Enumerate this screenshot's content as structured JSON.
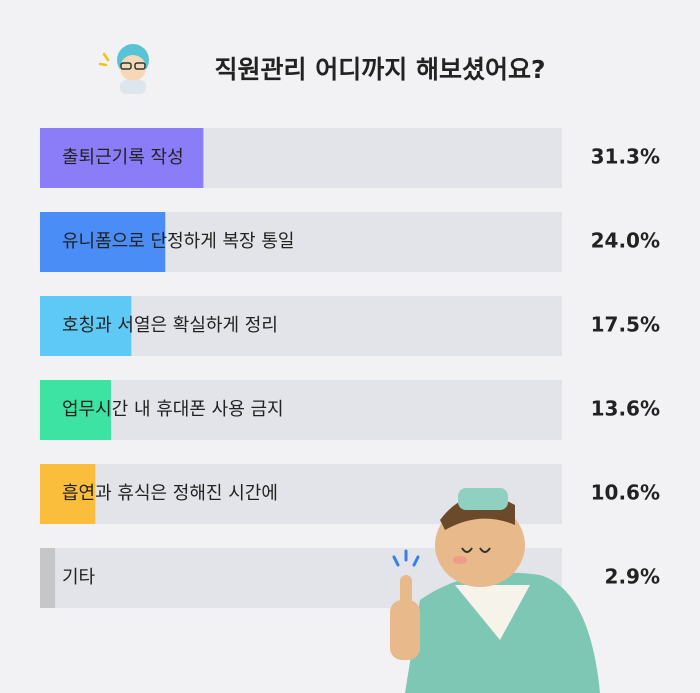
{
  "chart_data": {
    "type": "bar",
    "orientation": "horizontal",
    "title": "직원관리 어디까지 해보셨어요?",
    "categories": [
      "출퇴근기록 작성",
      "유니폼으로 단정하게 복장 통일",
      "호칭과 서열은 확실하게 정리",
      "업무시간 내 휴대폰 사용 금지",
      "흡연과 휴식은 정해진 시간에",
      "기타"
    ],
    "values": [
      31.3,
      24.0,
      17.5,
      13.6,
      10.6,
      2.9
    ],
    "value_labels": [
      "31.3%",
      "24.0%",
      "17.5%",
      "13.6%",
      "10.6%",
      "2.9%"
    ],
    "colors": [
      "#8b7cf7",
      "#4a8df6",
      "#5ec9f4",
      "#3de3a2",
      "#fbbe3c",
      "#c6c6c6"
    ],
    "track_color": "#e3e4e9"
  }
}
